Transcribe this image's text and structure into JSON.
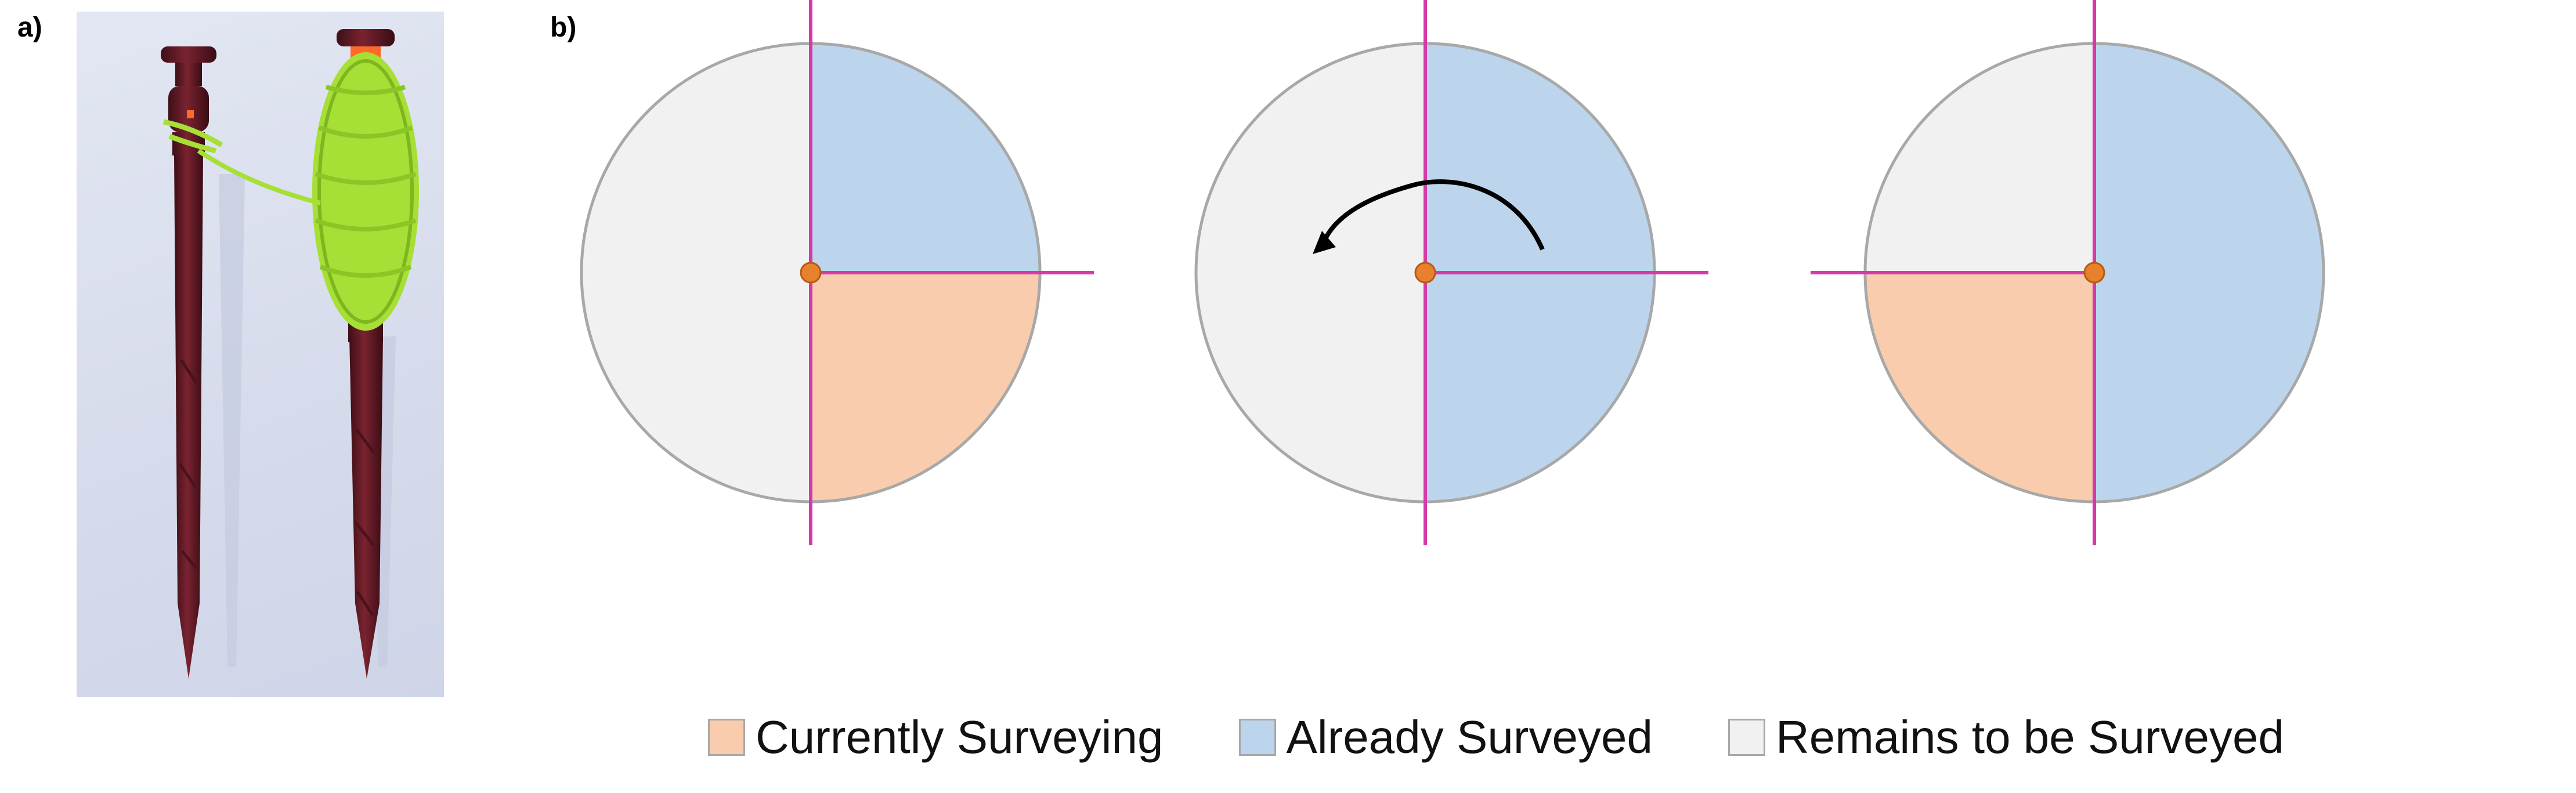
{
  "panels": {
    "a_label": "a)",
    "b_label": "b)"
  },
  "colors": {
    "currently_surveying": "#f8ccad",
    "already_surveyed": "#bcd5ed",
    "remains": "#f1f1f1",
    "axis_line": "#d63aa8",
    "center_dot": "#e8812d",
    "circle_border": "#a8a8a8"
  },
  "legend": [
    {
      "label": "Currently Surveying",
      "color": "#f8ccad"
    },
    {
      "label": "Already Surveyed",
      "color": "#bcd5ed"
    },
    {
      "label": "Remains to be Surveyed",
      "color": "#f1f1f1"
    }
  ],
  "diagrams": [
    {
      "step": 1,
      "currently_surveying": "bottom-right quadrant",
      "already_surveyed": "top-right quadrant",
      "remains": "left half",
      "rotation_arrow": false
    },
    {
      "step": 2,
      "currently_surveying": "none",
      "already_surveyed": "right half",
      "remains": "left half",
      "rotation_arrow": true
    },
    {
      "step": 3,
      "currently_surveying": "bottom-left quadrant",
      "already_surveyed": "right half",
      "remains": "top-left quadrant",
      "rotation_arrow": false
    }
  ],
  "photo": {
    "content": "two-wooden-stakes-with-green-string"
  }
}
